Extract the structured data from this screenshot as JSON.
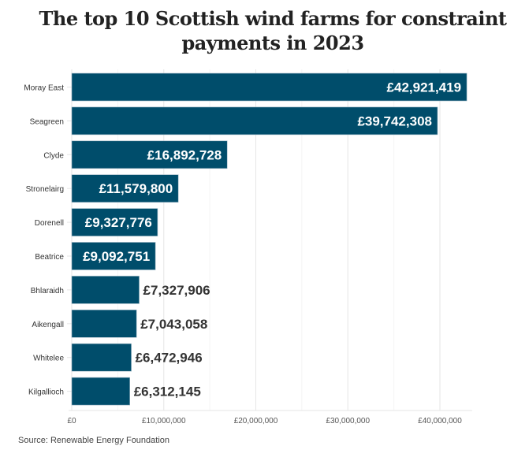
{
  "chart_data": {
    "type": "bar",
    "orientation": "horizontal",
    "title": "The top 10 Scottish wind farms for constraint payments in 2023",
    "categories": [
      "Moray East",
      "Seagreen",
      "Clyde",
      "Stronelairg",
      "Dorenell",
      "Beatrice",
      "Bhlaraidh",
      "Aikengall",
      "Whitelee",
      "Kilgallioch"
    ],
    "values": [
      42921419,
      39742308,
      16892728,
      11579800,
      9327776,
      9092751,
      7327906,
      7043058,
      6472946,
      6312145
    ],
    "data_labels": [
      "£42,921,419",
      "£39,742,308",
      "£16,892,728",
      "£11,579,800",
      "£9,327,776",
      "£9,092,751",
      "£7,327,906",
      "£7,043,058",
      "£6,472,946",
      "£6,312,145"
    ],
    "xlim": [
      0,
      43500000
    ],
    "x_ticks": [
      0,
      10000000,
      20000000,
      30000000,
      40000000
    ],
    "x_tick_labels": [
      "£0",
      "£10,000,000",
      "£20,000,000",
      "£30,000,000",
      "£40,000,000"
    ],
    "grid": "vertical",
    "bar_color": "#004d6b",
    "source": "Source: Renewable Energy Foundation"
  }
}
